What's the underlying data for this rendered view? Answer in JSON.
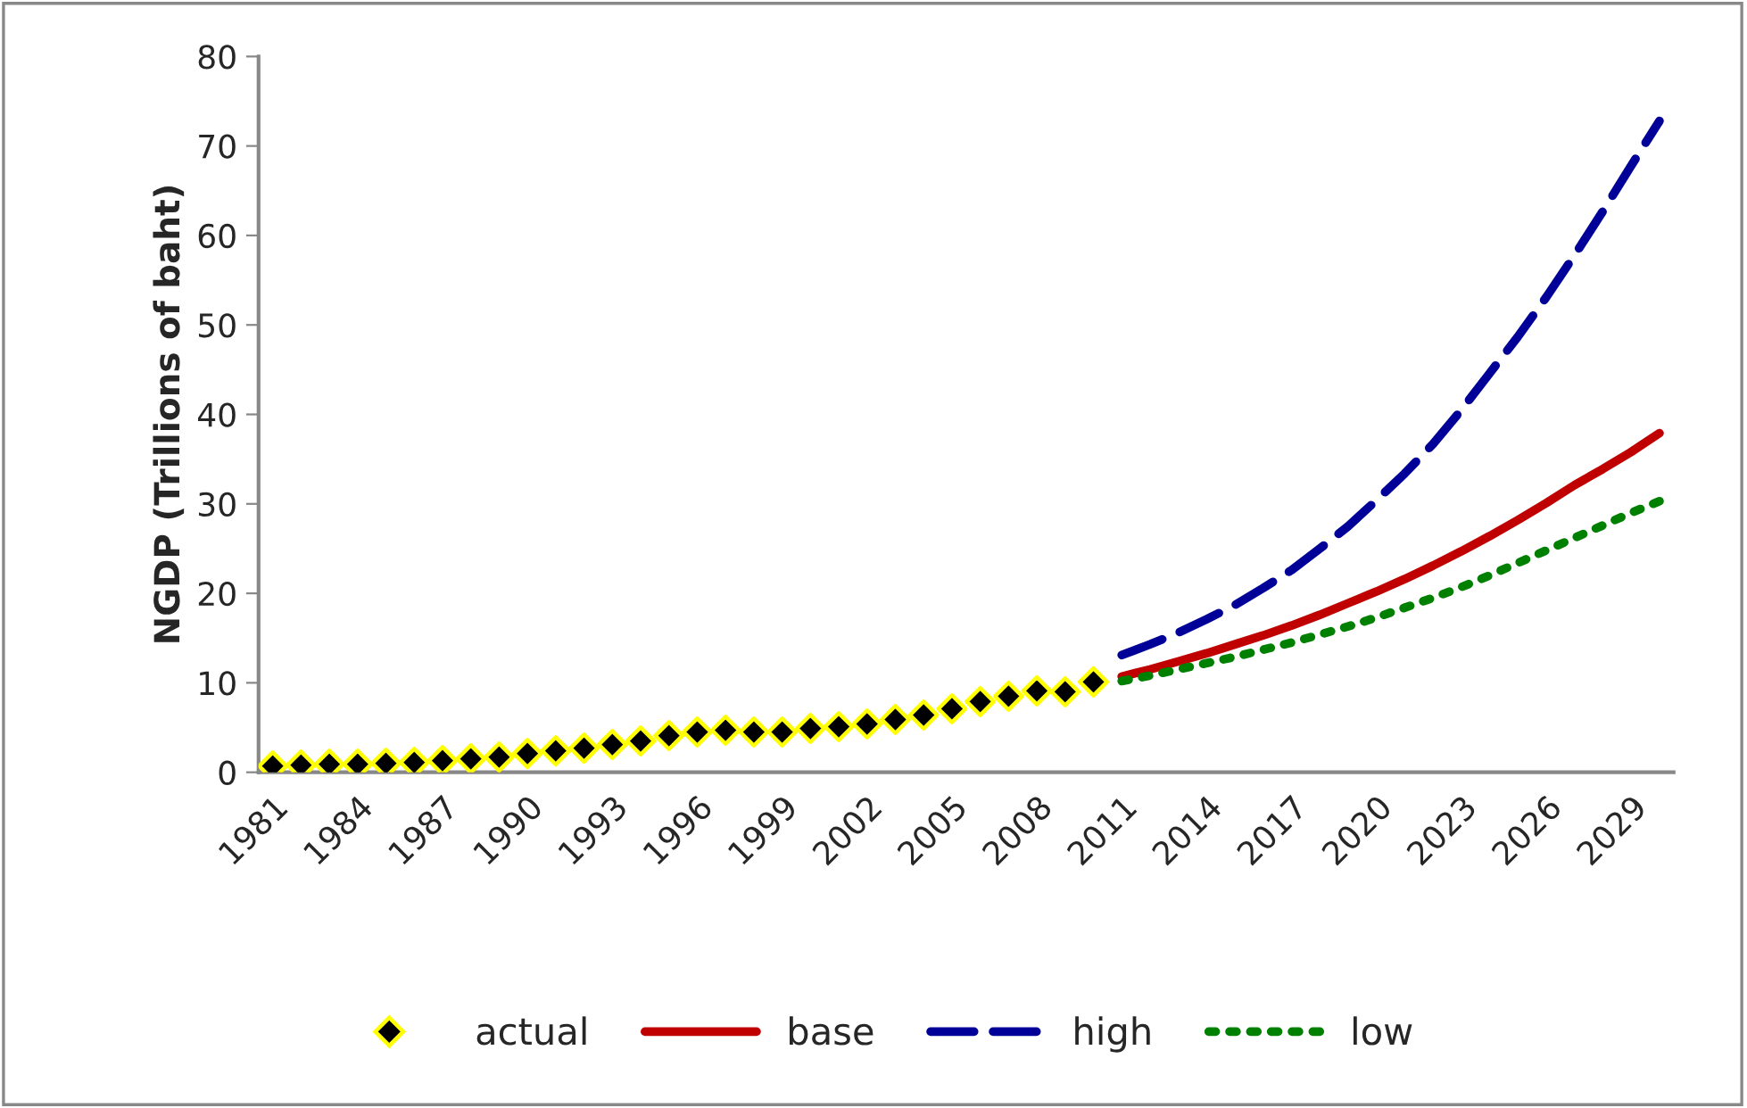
{
  "chart_data": {
    "type": "line",
    "ylabel": "NGDP (Trillions of baht)",
    "categories": [
      "1981",
      null,
      null,
      "1984",
      null,
      null,
      "1987",
      null,
      null,
      "1990",
      null,
      null,
      "1993",
      null,
      null,
      "1996",
      null,
      null,
      "1999",
      null,
      null,
      "2002",
      null,
      null,
      "2005",
      null,
      null,
      "2008",
      null,
      null,
      "2011",
      null,
      null,
      "2014",
      null,
      null,
      "2017",
      null,
      null,
      "2020",
      null,
      null,
      "2023",
      null,
      null,
      "2026",
      null,
      null,
      "2029",
      null
    ],
    "series": [
      {
        "name": "actual",
        "type": "scatter",
        "marker": "diamond",
        "color": "#000000",
        "values": [
          0.7,
          0.8,
          0.9,
          0.9,
          1.0,
          1.1,
          1.3,
          1.5,
          1.7,
          2.1,
          2.4,
          2.7,
          3.1,
          3.5,
          4.1,
          4.5,
          4.7,
          4.5,
          4.5,
          4.9,
          5.1,
          5.4,
          5.9,
          6.4,
          7.1,
          7.9,
          8.5,
          9.1,
          9.0,
          10.1,
          null,
          null,
          null,
          null,
          null,
          null,
          null,
          null,
          null,
          null,
          null,
          null,
          null,
          null,
          null,
          null,
          null,
          null,
          null,
          null
        ]
      },
      {
        "name": "base",
        "line_style": "solid",
        "color": "#c00000",
        "values": [
          null,
          null,
          null,
          null,
          null,
          null,
          null,
          null,
          null,
          null,
          null,
          null,
          null,
          null,
          null,
          null,
          null,
          null,
          null,
          null,
          null,
          null,
          null,
          null,
          null,
          null,
          null,
          null,
          null,
          null,
          10.7,
          11.5,
          12.4,
          13.3,
          14.3,
          15.3,
          16.4,
          17.6,
          18.9,
          20.2,
          21.6,
          23.1,
          24.7,
          26.4,
          28.2,
          30.1,
          32.1,
          33.9,
          35.8,
          37.9
        ]
      },
      {
        "name": "high",
        "line_style": "dashed",
        "color": "#000099",
        "values": [
          null,
          null,
          null,
          null,
          null,
          null,
          null,
          null,
          null,
          null,
          null,
          null,
          null,
          null,
          null,
          null,
          null,
          null,
          null,
          null,
          null,
          null,
          null,
          null,
          null,
          null,
          null,
          null,
          null,
          null,
          13.1,
          14.3,
          15.6,
          17.1,
          18.7,
          20.6,
          22.6,
          25.0,
          27.5,
          30.4,
          33.4,
          36.7,
          40.5,
          44.6,
          48.7,
          53.1,
          57.8,
          62.7,
          67.8,
          72.8
        ]
      },
      {
        "name": "low",
        "line_style": "dotted",
        "color": "#008000",
        "values": [
          null,
          null,
          null,
          null,
          null,
          null,
          null,
          null,
          null,
          null,
          null,
          null,
          null,
          null,
          null,
          null,
          null,
          null,
          null,
          null,
          null,
          null,
          null,
          null,
          null,
          null,
          null,
          null,
          null,
          null,
          10.2,
          10.8,
          11.5,
          12.2,
          12.9,
          13.7,
          14.5,
          15.4,
          16.3,
          17.3,
          18.4,
          19.5,
          20.7,
          22.0,
          23.4,
          24.8,
          26.2,
          27.6,
          29.0,
          30.3
        ]
      }
    ],
    "ylim": [
      0,
      80
    ],
    "yticks": [
      0,
      10,
      20,
      30,
      40,
      50,
      60,
      70,
      80
    ],
    "grid": false,
    "legend": "bottom"
  }
}
